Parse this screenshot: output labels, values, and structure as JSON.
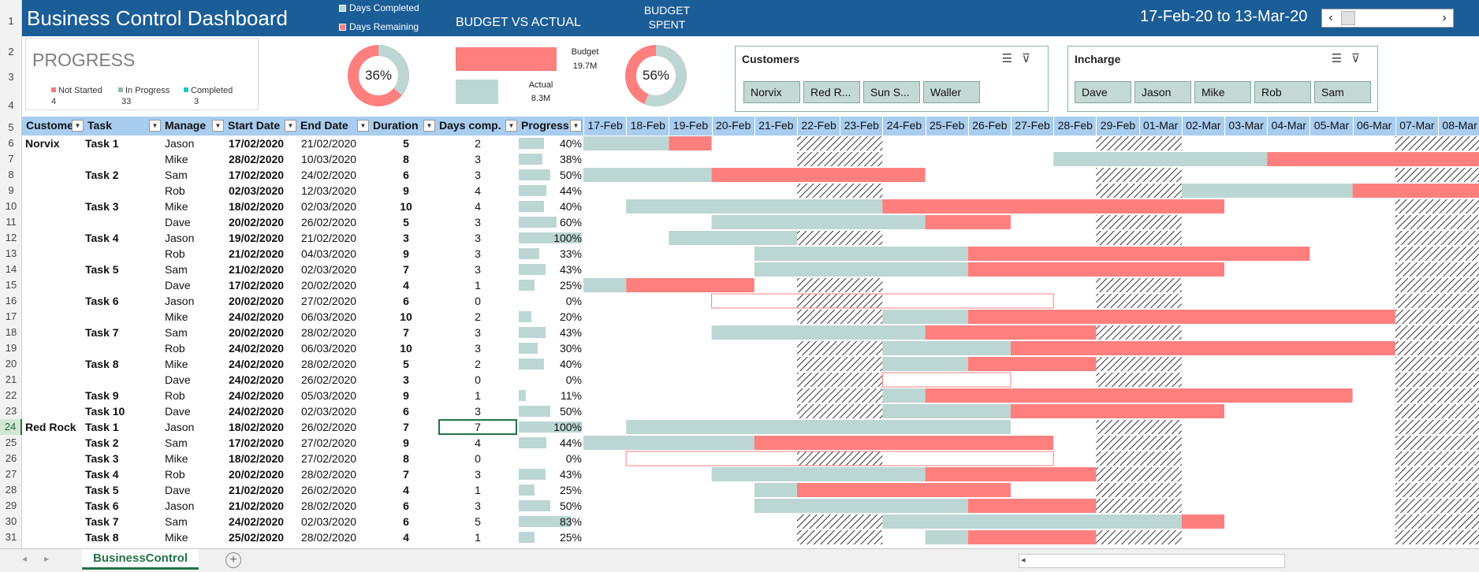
{
  "title": "Business Control Dashboard",
  "legend": {
    "completed": "Days Completed",
    "remaining": "Days Remaining"
  },
  "bva": {
    "title": "BUDGET VS ACTUAL",
    "budget_label": "Budget",
    "budget_value": "19.7M",
    "actual_label": "Actual",
    "actual_value": "8.3M",
    "budget_amount": 19.7,
    "actual_amount": 8.3
  },
  "budget_spent": {
    "title": "BUDGET SPENT",
    "pct": "56%",
    "fraction": 0.56
  },
  "date_range": "17-Feb-20 to 13-Mar-20",
  "progress": {
    "title": "PROGRESS",
    "pct": "36%",
    "fraction": 0.36,
    "legend": [
      {
        "label": "Not Started",
        "value": "4",
        "color": "#f57b7b"
      },
      {
        "label": "In Progress",
        "value": "33",
        "color": "#8fb8b0"
      },
      {
        "label": "Completed",
        "value": "3",
        "color": "#26c4c4"
      }
    ]
  },
  "customers_slicer": {
    "title": "Customers",
    "items": [
      "Norvix",
      "Red R...",
      "Sun S...",
      "Waller"
    ]
  },
  "incharge_slicer": {
    "title": "Incharge",
    "items": [
      "Dave",
      "Jason",
      "Mike",
      "Rob",
      "Sam"
    ]
  },
  "colors": {
    "done": "#bcd6d3",
    "remaining": "#ff7f7f",
    "header": "#a8cdef",
    "title_band": "#1b5d96"
  },
  "headers": [
    "Custome",
    "Task",
    "Manage",
    "Start Date",
    "End Date",
    "Duration",
    "Days comp.",
    "Progress"
  ],
  "dates": [
    "17-Feb",
    "18-Feb",
    "19-Feb",
    "20-Feb",
    "21-Feb",
    "22-Feb",
    "23-Feb",
    "24-Feb",
    "25-Feb",
    "26-Feb",
    "27-Feb",
    "28-Feb",
    "29-Feb",
    "01-Mar",
    "02-Mar",
    "03-Mar",
    "04-Mar",
    "05-Mar",
    "06-Mar",
    "07-Mar",
    "08-Mar"
  ],
  "weekend_days": [
    5,
    6,
    12,
    13,
    19,
    20
  ],
  "rownums": [
    "1",
    "2",
    "3",
    "4",
    "5",
    "6",
    "7",
    "8",
    "9",
    "10",
    "11",
    "12",
    "13",
    "14",
    "15",
    "16",
    "17",
    "18",
    "19",
    "20",
    "21",
    "22",
    "23",
    "24",
    "25",
    "26",
    "27",
    "28",
    "29",
    "30",
    "31"
  ],
  "rows": [
    {
      "customer": "Norvix",
      "task": "Task 1",
      "manager": "Jason",
      "start": "17/02/2020",
      "end": "21/02/2020",
      "duration": "5",
      "days": "2",
      "progress": "40%",
      "p": 0.4,
      "gs": 0,
      "ge": 3,
      "ra": 0,
      "rb": 2,
      "bold": true
    },
    {
      "customer": "",
      "task": "",
      "manager": "Mike",
      "start": "28/02/2020",
      "end": "10/03/2020",
      "duration": "8",
      "days": "3",
      "progress": "38%",
      "p": 0.38,
      "gs": 11,
      "ge": 21,
      "ra": 11,
      "rb": 16,
      "bold": false
    },
    {
      "customer": "",
      "task": "Task 2",
      "manager": "Sam",
      "start": "17/02/2020",
      "end": "24/02/2020",
      "duration": "6",
      "days": "3",
      "progress": "50%",
      "p": 0.5,
      "gs": 0,
      "ge": 8,
      "ra": 0,
      "rb": 3,
      "bold": true
    },
    {
      "customer": "",
      "task": "",
      "manager": "Rob",
      "start": "02/03/2020",
      "end": "12/03/2020",
      "duration": "9",
      "days": "4",
      "progress": "44%",
      "p": 0.44,
      "gs": 14,
      "ge": 21,
      "ra": 14,
      "rb": 18,
      "bold": false
    },
    {
      "customer": "",
      "task": "Task 3",
      "manager": "Mike",
      "start": "18/02/2020",
      "end": "02/03/2020",
      "duration": "10",
      "days": "4",
      "progress": "40%",
      "p": 0.4,
      "gs": 1,
      "ge": 15,
      "ra": 1,
      "rb": 7,
      "bold": true
    },
    {
      "customer": "",
      "task": "",
      "manager": "Dave",
      "start": "20/02/2020",
      "end": "26/02/2020",
      "duration": "5",
      "days": "3",
      "progress": "60%",
      "p": 0.6,
      "gs": 3,
      "ge": 10,
      "ra": 3,
      "rb": 8,
      "bold": false
    },
    {
      "customer": "",
      "task": "Task 4",
      "manager": "Jason",
      "start": "19/02/2020",
      "end": "21/02/2020",
      "duration": "3",
      "days": "3",
      "progress": "100%",
      "p": 1.0,
      "gs": 2,
      "ge": 5,
      "ra": 2,
      "rb": 5,
      "bold": true
    },
    {
      "customer": "",
      "task": "",
      "manager": "Rob",
      "start": "21/02/2020",
      "end": "04/03/2020",
      "duration": "9",
      "days": "3",
      "progress": "33%",
      "p": 0.33,
      "gs": 4,
      "ge": 17,
      "ra": 4,
      "rb": 9,
      "bold": false
    },
    {
      "customer": "",
      "task": "Task 5",
      "manager": "Sam",
      "start": "21/02/2020",
      "end": "02/03/2020",
      "duration": "7",
      "days": "3",
      "progress": "43%",
      "p": 0.43,
      "gs": 4,
      "ge": 15,
      "ra": 4,
      "rb": 9,
      "bold": true
    },
    {
      "customer": "",
      "task": "",
      "manager": "Dave",
      "start": "17/02/2020",
      "end": "20/02/2020",
      "duration": "4",
      "days": "1",
      "progress": "25%",
      "p": 0.25,
      "gs": 0,
      "ge": 4,
      "ra": 0,
      "rb": 1,
      "bold": false
    },
    {
      "customer": "",
      "task": "Task 6",
      "manager": "Jason",
      "start": "20/02/2020",
      "end": "27/02/2020",
      "duration": "6",
      "days": "0",
      "progress": "0%",
      "p": 0.0,
      "gs": 3,
      "ge": 11,
      "ra": 3,
      "rb": 3,
      "bold": true
    },
    {
      "customer": "",
      "task": "",
      "manager": "Mike",
      "start": "24/02/2020",
      "end": "06/03/2020",
      "duration": "10",
      "days": "2",
      "progress": "20%",
      "p": 0.2,
      "gs": 7,
      "ge": 19,
      "ra": 7,
      "rb": 9,
      "bold": false
    },
    {
      "customer": "",
      "task": "Task 7",
      "manager": "Sam",
      "start": "20/02/2020",
      "end": "28/02/2020",
      "duration": "7",
      "days": "3",
      "progress": "43%",
      "p": 0.43,
      "gs": 3,
      "ge": 12,
      "ra": 3,
      "rb": 8,
      "bold": true
    },
    {
      "customer": "",
      "task": "",
      "manager": "Rob",
      "start": "24/02/2020",
      "end": "06/03/2020",
      "duration": "10",
      "days": "3",
      "progress": "30%",
      "p": 0.3,
      "gs": 7,
      "ge": 19,
      "ra": 7,
      "rb": 10,
      "bold": false
    },
    {
      "customer": "",
      "task": "Task 8",
      "manager": "Mike",
      "start": "24/02/2020",
      "end": "28/02/2020",
      "duration": "5",
      "days": "2",
      "progress": "40%",
      "p": 0.4,
      "gs": 7,
      "ge": 12,
      "ra": 7,
      "rb": 9,
      "bold": true
    },
    {
      "customer": "",
      "task": "",
      "manager": "Dave",
      "start": "24/02/2020",
      "end": "26/02/2020",
      "duration": "3",
      "days": "0",
      "progress": "0%",
      "p": 0.0,
      "gs": 7,
      "ge": 10,
      "ra": 7,
      "rb": 7,
      "bold": false
    },
    {
      "customer": "",
      "task": "Task 9",
      "manager": "Rob",
      "start": "24/02/2020",
      "end": "05/03/2020",
      "duration": "9",
      "days": "1",
      "progress": "11%",
      "p": 0.11,
      "gs": 7,
      "ge": 18,
      "ra": 7,
      "rb": 8,
      "bold": true
    },
    {
      "customer": "",
      "task": "Task 10",
      "manager": "Dave",
      "start": "24/02/2020",
      "end": "02/03/2020",
      "duration": "6",
      "days": "3",
      "progress": "50%",
      "p": 0.5,
      "gs": 7,
      "ge": 15,
      "ra": 7,
      "rb": 10,
      "bold": true
    },
    {
      "customer": "Red Rock",
      "task": "Task 1",
      "manager": "Jason",
      "start": "18/02/2020",
      "end": "26/02/2020",
      "duration": "7",
      "days": "7",
      "progress": "100%",
      "p": 1.0,
      "gs": 1,
      "ge": 10,
      "ra": 1,
      "rb": 10,
      "bold": true,
      "selected": true
    },
    {
      "customer": "",
      "task": "Task 2",
      "manager": "Sam",
      "start": "17/02/2020",
      "end": "27/02/2020",
      "duration": "9",
      "days": "4",
      "progress": "44%",
      "p": 0.44,
      "gs": 0,
      "ge": 11,
      "ra": 0,
      "rb": 4,
      "bold": true
    },
    {
      "customer": "",
      "task": "Task 3",
      "manager": "Mike",
      "start": "18/02/2020",
      "end": "27/02/2020",
      "duration": "8",
      "days": "0",
      "progress": "0%",
      "p": 0.0,
      "gs": 1,
      "ge": 11,
      "ra": 1,
      "rb": 1,
      "bold": true
    },
    {
      "customer": "",
      "task": "Task 4",
      "manager": "Rob",
      "start": "20/02/2020",
      "end": "28/02/2020",
      "duration": "7",
      "days": "3",
      "progress": "43%",
      "p": 0.43,
      "gs": 3,
      "ge": 12,
      "ra": 3,
      "rb": 8,
      "bold": true
    },
    {
      "customer": "",
      "task": "Task 5",
      "manager": "Dave",
      "start": "21/02/2020",
      "end": "26/02/2020",
      "duration": "4",
      "days": "1",
      "progress": "25%",
      "p": 0.25,
      "gs": 4,
      "ge": 10,
      "ra": 4,
      "rb": 5,
      "bold": true
    },
    {
      "customer": "",
      "task": "Task 6",
      "manager": "Jason",
      "start": "21/02/2020",
      "end": "28/02/2020",
      "duration": "6",
      "days": "3",
      "progress": "50%",
      "p": 0.5,
      "gs": 4,
      "ge": 12,
      "ra": 4,
      "rb": 9,
      "bold": true
    },
    {
      "customer": "",
      "task": "Task 7",
      "manager": "Sam",
      "start": "24/02/2020",
      "end": "02/03/2020",
      "duration": "6",
      "days": "5",
      "progress": "83%",
      "p": 0.83,
      "gs": 7,
      "ge": 15,
      "ra": 7,
      "rb": 14,
      "bold": true
    },
    {
      "customer": "",
      "task": "Task 8",
      "manager": "Mike",
      "start": "25/02/2020",
      "end": "28/02/2020",
      "duration": "4",
      "days": "1",
      "progress": "25%",
      "p": 0.25,
      "gs": 8,
      "ge": 12,
      "ra": 8,
      "rb": 9,
      "bold": true
    }
  ],
  "sheet_tab": "BusinessControl"
}
